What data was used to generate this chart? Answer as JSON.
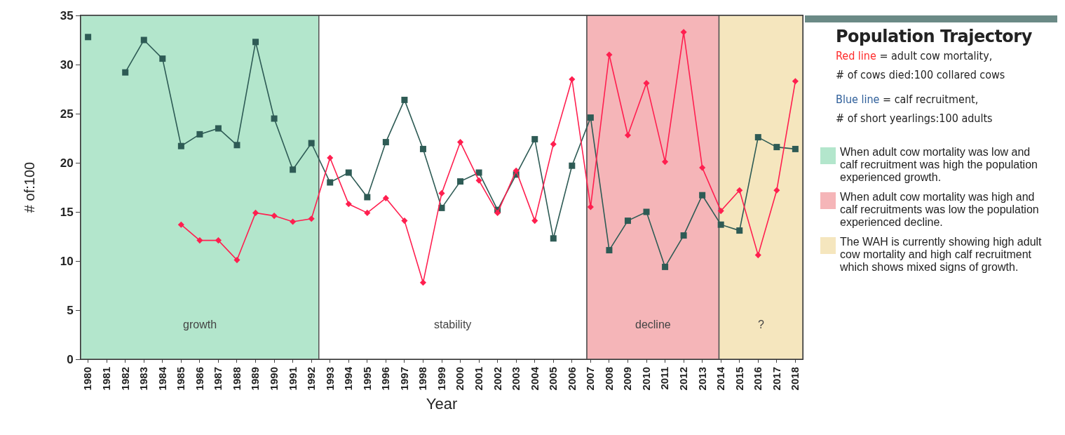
{
  "chart_data": {
    "type": "line",
    "xlabel": "Year",
    "ylabel": "# of:100",
    "x": [
      1980,
      1981,
      1982,
      1983,
      1984,
      1985,
      1986,
      1987,
      1988,
      1989,
      1990,
      1991,
      1992,
      1993,
      1994,
      1995,
      1996,
      1997,
      1998,
      1999,
      2000,
      2001,
      2002,
      2003,
      2004,
      2005,
      2006,
      2007,
      2008,
      2009,
      2010,
      2011,
      2012,
      2013,
      2014,
      2015,
      2016,
      2017,
      2018
    ],
    "series": [
      {
        "color": "#2e5b55",
        "marker": "square",
        "values": [
          32.8,
          null,
          29.2,
          32.5,
          30.6,
          21.7,
          22.9,
          23.5,
          21.8,
          32.3,
          24.5,
          19.3,
          22.0,
          18.0,
          19.0,
          16.5,
          22.1,
          26.4,
          21.4,
          15.4,
          18.1,
          19.0,
          15.2,
          18.8,
          22.4,
          12.3,
          19.7,
          24.6,
          11.1,
          14.1,
          15.0,
          9.4,
          12.6,
          16.7,
          13.7,
          13.1,
          22.6,
          21.6,
          21.4
        ]
      },
      {
        "color": "#ff1f4f",
        "marker": "diamond",
        "values": [
          null,
          null,
          null,
          null,
          null,
          13.7,
          12.1,
          12.1,
          10.1,
          14.9,
          14.6,
          14.0,
          14.3,
          20.5,
          15.8,
          14.9,
          16.4,
          14.1,
          7.8,
          16.9,
          22.1,
          18.2,
          14.9,
          19.2,
          14.1,
          21.9,
          28.5,
          15.5,
          31.0,
          22.8,
          28.1,
          20.1,
          33.3,
          19.5,
          15.1,
          17.2,
          10.6,
          17.2,
          28.3
        ]
      }
    ],
    "xlim": [
      1979.6,
      2018.4
    ],
    "xticks": [
      1980,
      1981,
      1982,
      1983,
      1984,
      1985,
      1986,
      1987,
      1988,
      1989,
      1990,
      1991,
      1992,
      1993,
      1994,
      1995,
      1996,
      1997,
      1998,
      1999,
      2000,
      2001,
      2002,
      2003,
      2004,
      2005,
      2006,
      2007,
      2008,
      2009,
      2010,
      2011,
      2012,
      2013,
      2014,
      2015,
      2016,
      2017,
      2018
    ],
    "ylim": [
      0,
      35
    ],
    "yticks": [
      0,
      5,
      10,
      15,
      20,
      25,
      30,
      35
    ],
    "grid": false,
    "line_style": "solid",
    "bands": [
      {
        "axis": "x",
        "from": 1979.6,
        "to": 1992.4,
        "label": "growth",
        "color": "#b3e6cc"
      },
      {
        "axis": "x",
        "from": 1992.4,
        "to": 2006.8,
        "label": "stability",
        "color": "#ffffff"
      },
      {
        "axis": "x",
        "from": 2006.8,
        "to": 2013.9,
        "label": "decline",
        "color": "#f5b5b8"
      },
      {
        "axis": "x",
        "from": 2013.9,
        "to": 2018.4,
        "label": "?",
        "color": "#f5e6be"
      }
    ],
    "annotations": [
      "Population Trajectory",
      "Red line",
      "= adult cow mortality,",
      "# of cows died:100 collared cows",
      "Blue line",
      "= calf recruitment,",
      "# of short yearlings:100 adults",
      "When adult cow mortality was low and calf recruitment was high the population experienced growth.",
      "When adult cow mortality was high and calf recruitments was low the population experienced decline.",
      "The WAH is currently showing high adult cow mortality and high calf recruitment which shows mixed signs of growth."
    ]
  }
}
